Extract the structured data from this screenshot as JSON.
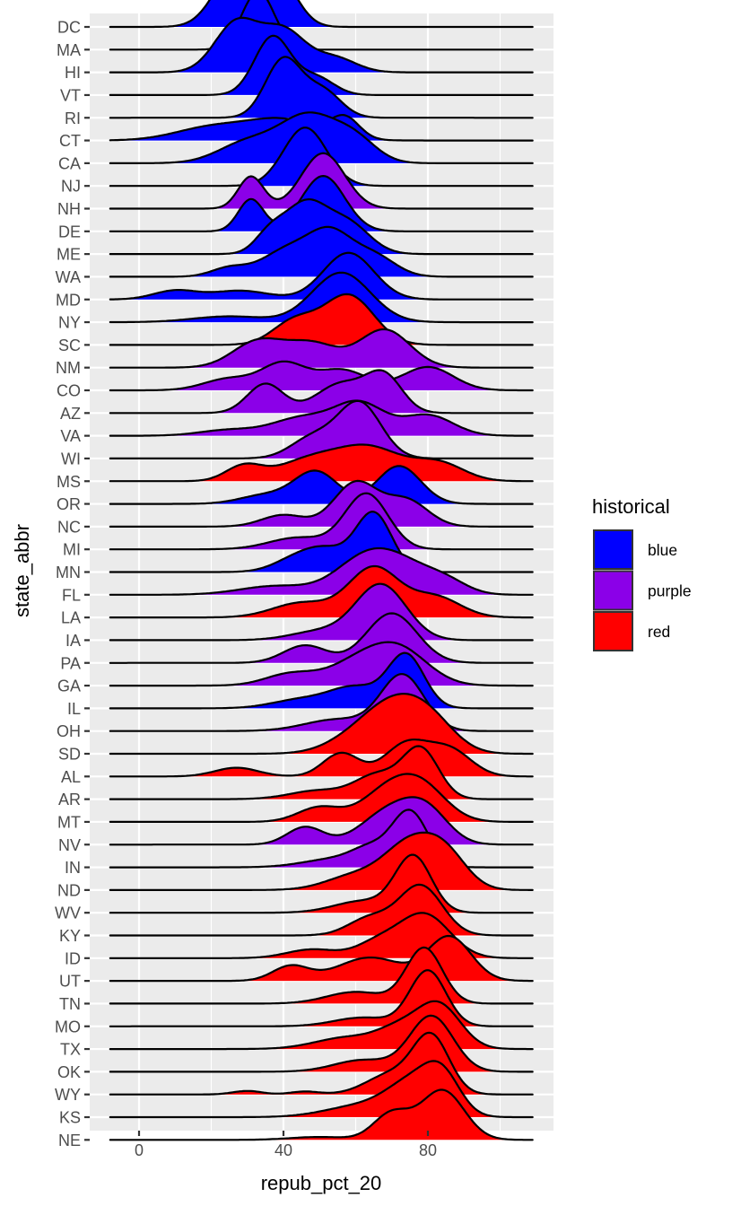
{
  "chart_data": {
    "type": "ridgeline",
    "xlabel": "repub_pct_20",
    "ylabel": "state_abbr",
    "xlim": [
      -14,
      115
    ],
    "x_ticks": [
      0,
      40,
      80
    ],
    "x_tick_labels": [
      "0",
      "40",
      "80"
    ],
    "x_minor_gridlines": [
      -20,
      20,
      60,
      100
    ],
    "density_range": [
      -8,
      109
    ],
    "grid": true,
    "legend": {
      "title": "historical",
      "placement": "right",
      "entries": [
        {
          "label": "blue",
          "color": "#0000FF"
        },
        {
          "label": "purple",
          "color": "#8B00E8"
        },
        {
          "label": "red",
          "color": "#FF0000"
        }
      ]
    },
    "series": [
      {
        "state": "DC",
        "historical": "blue",
        "components": [
          [
            27,
            6,
            1.0
          ],
          [
            39,
            5,
            0.75
          ]
        ]
      },
      {
        "state": "MA",
        "historical": "blue",
        "components": [
          [
            33,
            4.5,
            1.0
          ]
        ]
      },
      {
        "state": "HI",
        "historical": "blue",
        "components": [
          [
            27,
            6,
            0.85
          ],
          [
            40,
            6,
            0.7
          ],
          [
            54,
            6,
            0.25
          ]
        ]
      },
      {
        "state": "VT",
        "historical": "blue",
        "components": [
          [
            37,
            5,
            1.0
          ],
          [
            49,
            5,
            0.3
          ]
        ]
      },
      {
        "state": "RI",
        "historical": "blue",
        "components": [
          [
            40,
            5,
            1.0
          ],
          [
            51,
            5,
            0.45
          ]
        ]
      },
      {
        "state": "CT",
        "historical": "blue",
        "components": [
          [
            20,
            10,
            0.22
          ],
          [
            40,
            10,
            0.35
          ],
          [
            57,
            4,
            0.35
          ]
        ]
      },
      {
        "state": "CA",
        "historical": "blue",
        "components": [
          [
            30,
            8,
            0.35
          ],
          [
            47,
            8,
            0.8
          ],
          [
            60,
            6,
            0.35
          ]
        ]
      },
      {
        "state": "NJ",
        "historical": "blue",
        "components": [
          [
            46,
            6,
            1.0
          ]
        ]
      },
      {
        "state": "NH",
        "historical": "purple",
        "components": [
          [
            31,
            3.5,
            0.55
          ],
          [
            51,
            6,
            0.95
          ]
        ]
      },
      {
        "state": "DE",
        "historical": "blue",
        "components": [
          [
            31,
            3.5,
            0.55
          ],
          [
            51,
            6,
            0.95
          ]
        ]
      },
      {
        "state": "ME",
        "historical": "blue",
        "components": [
          [
            36,
            4,
            0.3
          ],
          [
            46,
            6,
            0.85
          ],
          [
            58,
            6,
            0.5
          ]
        ]
      },
      {
        "state": "WA",
        "historical": "blue",
        "components": [
          [
            25,
            5,
            0.15
          ],
          [
            41,
            7,
            0.45
          ],
          [
            53,
            6,
            0.7
          ],
          [
            65,
            6,
            0.35
          ]
        ]
      },
      {
        "state": "MD",
        "historical": "blue",
        "components": [
          [
            10,
            6,
            0.15
          ],
          [
            28,
            8,
            0.15
          ],
          [
            58,
            7,
            0.8
          ]
        ]
      },
      {
        "state": "NY",
        "historical": "blue",
        "components": [
          [
            25,
            10,
            0.1
          ],
          [
            56,
            8,
            0.85
          ]
        ]
      },
      {
        "state": "SC",
        "historical": "red",
        "components": [
          [
            43,
            6,
            0.4
          ],
          [
            58,
            7,
            0.85
          ]
        ]
      },
      {
        "state": "NM",
        "historical": "purple",
        "components": [
          [
            33,
            7,
            0.45
          ],
          [
            48,
            7,
            0.4
          ],
          [
            68,
            7,
            0.65
          ]
        ]
      },
      {
        "state": "CO",
        "historical": "purple",
        "components": [
          [
            25,
            7,
            0.2
          ],
          [
            40,
            6,
            0.45
          ],
          [
            56,
            7,
            0.35
          ],
          [
            80,
            7,
            0.4
          ]
        ]
      },
      {
        "state": "AZ",
        "historical": "purple",
        "components": [
          [
            35,
            5,
            0.5
          ],
          [
            56,
            7,
            0.5
          ],
          [
            68,
            5,
            0.6
          ]
        ]
      },
      {
        "state": "VA",
        "historical": "purple",
        "components": [
          [
            25,
            8,
            0.1
          ],
          [
            45,
            8,
            0.3
          ],
          [
            61,
            7,
            0.55
          ],
          [
            80,
            7,
            0.35
          ]
        ]
      },
      {
        "state": "WI",
        "historical": "purple",
        "components": [
          [
            48,
            6,
            0.35
          ],
          [
            61,
            6,
            0.95
          ]
        ]
      },
      {
        "state": "MS",
        "historical": "red",
        "components": [
          [
            29,
            5,
            0.25
          ],
          [
            47,
            9,
            0.35
          ],
          [
            64,
            9,
            0.55
          ],
          [
            83,
            7,
            0.3
          ]
        ]
      },
      {
        "state": "OR",
        "historical": "blue",
        "components": [
          [
            35,
            7,
            0.15
          ],
          [
            49,
            6,
            0.55
          ],
          [
            72,
            6,
            0.65
          ]
        ]
      },
      {
        "state": "NC",
        "historical": "purple",
        "components": [
          [
            40,
            6,
            0.2
          ],
          [
            60,
            6,
            0.75
          ],
          [
            74,
            6,
            0.45
          ]
        ]
      },
      {
        "state": "MI",
        "historical": "purple",
        "components": [
          [
            44,
            8,
            0.2
          ],
          [
            63,
            6,
            0.95
          ]
        ]
      },
      {
        "state": "MN",
        "historical": "blue",
        "components": [
          [
            43,
            6,
            0.2
          ],
          [
            52,
            6,
            0.35
          ],
          [
            65,
            5,
            1.0
          ]
        ]
      },
      {
        "state": "FL",
        "historical": "purple",
        "components": [
          [
            38,
            10,
            0.15
          ],
          [
            62,
            8,
            0.55
          ],
          [
            73,
            8,
            0.45
          ],
          [
            85,
            6,
            0.2
          ]
        ]
      },
      {
        "state": "LA",
        "historical": "red",
        "components": [
          [
            45,
            8,
            0.25
          ],
          [
            65,
            7,
            0.85
          ],
          [
            82,
            7,
            0.35
          ]
        ]
      },
      {
        "state": "IA",
        "historical": "purple",
        "components": [
          [
            50,
            8,
            0.15
          ],
          [
            67,
            7,
            0.95
          ]
        ]
      },
      {
        "state": "PA",
        "historical": "purple",
        "components": [
          [
            46,
            6,
            0.3
          ],
          [
            70,
            7,
            0.85
          ]
        ]
      },
      {
        "state": "GA",
        "historical": "purple",
        "components": [
          [
            42,
            7,
            0.2
          ],
          [
            60,
            8,
            0.35
          ],
          [
            72,
            8,
            0.6
          ]
        ]
      },
      {
        "state": "IL",
        "historical": "blue",
        "components": [
          [
            45,
            8,
            0.15
          ],
          [
            60,
            7,
            0.35
          ],
          [
            74,
            5,
            0.9
          ]
        ]
      },
      {
        "state": "OH",
        "historical": "purple",
        "components": [
          [
            55,
            9,
            0.2
          ],
          [
            73,
            6,
            0.95
          ]
        ]
      },
      {
        "state": "SD",
        "historical": "red",
        "components": [
          [
            60,
            8,
            0.25
          ],
          [
            71,
            8,
            0.75
          ],
          [
            81,
            7,
            0.45
          ]
        ]
      },
      {
        "state": "AL",
        "historical": "red",
        "components": [
          [
            27,
            6,
            0.15
          ],
          [
            56,
            5,
            0.4
          ],
          [
            74,
            6,
            0.55
          ],
          [
            86,
            6,
            0.45
          ]
        ]
      },
      {
        "state": "AR",
        "historical": "red",
        "components": [
          [
            50,
            8,
            0.15
          ],
          [
            66,
            6,
            0.4
          ],
          [
            78,
            5,
            0.85
          ]
        ]
      },
      {
        "state": "MT",
        "historical": "red",
        "components": [
          [
            50,
            6,
            0.25
          ],
          [
            68,
            7,
            0.45
          ],
          [
            78,
            7,
            0.6
          ]
        ]
      },
      {
        "state": "NV",
        "historical": "purple",
        "components": [
          [
            46,
            5,
            0.3
          ],
          [
            70,
            8,
            0.6
          ],
          [
            80,
            6,
            0.45
          ]
        ]
      },
      {
        "state": "IN",
        "historical": "purple",
        "components": [
          [
            55,
            9,
            0.15
          ],
          [
            64,
            5,
            0.25
          ],
          [
            75,
            5,
            0.95
          ]
        ]
      },
      {
        "state": "ND",
        "historical": "red",
        "components": [
          [
            60,
            8,
            0.25
          ],
          [
            75,
            7,
            0.75
          ],
          [
            85,
            6,
            0.55
          ]
        ]
      },
      {
        "state": "WV",
        "historical": "red",
        "components": [
          [
            62,
            8,
            0.2
          ],
          [
            76,
            5,
            0.95
          ]
        ]
      },
      {
        "state": "KY",
        "historical": "red",
        "components": [
          [
            64,
            6,
            0.3
          ],
          [
            78,
            6,
            0.85
          ]
        ]
      },
      {
        "state": "ID",
        "historical": "red",
        "components": [
          [
            48,
            7,
            0.15
          ],
          [
            66,
            6,
            0.25
          ],
          [
            79,
            7,
            0.75
          ]
        ]
      },
      {
        "state": "UT",
        "historical": "red",
        "components": [
          [
            42,
            5,
            0.25
          ],
          [
            64,
            9,
            0.4
          ],
          [
            86,
            6,
            0.75
          ]
        ]
      },
      {
        "state": "TN",
        "historical": "red",
        "components": [
          [
            60,
            8,
            0.2
          ],
          [
            79,
            5,
            0.95
          ]
        ]
      },
      {
        "state": "MO",
        "historical": "red",
        "components": [
          [
            62,
            8,
            0.15
          ],
          [
            80,
            5,
            0.95
          ]
        ]
      },
      {
        "state": "TX",
        "historical": "red",
        "components": [
          [
            58,
            9,
            0.2
          ],
          [
            72,
            6,
            0.3
          ],
          [
            83,
            6,
            0.75
          ]
        ]
      },
      {
        "state": "OK",
        "historical": "red",
        "components": [
          [
            62,
            8,
            0.2
          ],
          [
            81,
            6,
            0.95
          ]
        ]
      },
      {
        "state": "WY",
        "historical": "red",
        "components": [
          [
            30,
            4,
            0.06
          ],
          [
            46,
            4,
            0.05
          ],
          [
            70,
            7,
            0.35
          ],
          [
            81,
            5,
            0.95
          ]
        ]
      },
      {
        "state": "KS",
        "historical": "red",
        "components": [
          [
            62,
            10,
            0.2
          ],
          [
            76,
            7,
            0.55
          ],
          [
            84,
            5,
            0.6
          ]
        ]
      },
      {
        "state": "NE",
        "historical": "red",
        "components": [
          [
            50,
            8,
            0.05
          ],
          [
            70,
            5,
            0.45
          ],
          [
            84,
            6,
            0.85
          ]
        ]
      }
    ]
  },
  "axis": {
    "y_title": "state_abbr",
    "x_title": "repub_pct_20"
  }
}
